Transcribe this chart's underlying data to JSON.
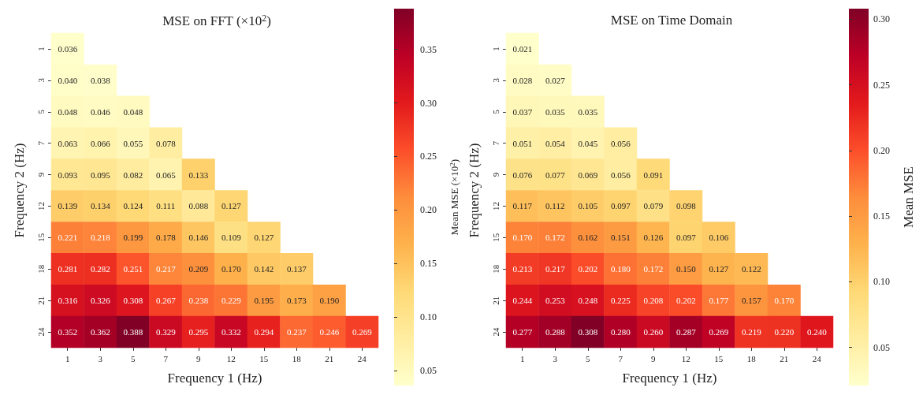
{
  "chart_data": [
    {
      "type": "heatmap",
      "title": "MSE on FFT (×10$^{2}$)",
      "xlabel": "Frequency 1 (Hz)",
      "ylabel": "Frequency 2 (Hz)",
      "clabel": "Mean MSE (×10$^{2}$)",
      "categories": [
        "1",
        "3",
        "5",
        "7",
        "9",
        "12",
        "15",
        "18",
        "21",
        "24"
      ],
      "y_categories": [
        "1",
        "3",
        "5",
        "7",
        "9",
        "12",
        "15",
        "18",
        "21",
        "24"
      ],
      "cells": [
        [
          0.036,
          null,
          null,
          null,
          null,
          null,
          null,
          null,
          null,
          null
        ],
        [
          0.04,
          0.038,
          null,
          null,
          null,
          null,
          null,
          null,
          null,
          null
        ],
        [
          0.048,
          0.046,
          0.048,
          null,
          null,
          null,
          null,
          null,
          null,
          null
        ],
        [
          0.063,
          0.066,
          0.055,
          0.078,
          null,
          null,
          null,
          null,
          null,
          null
        ],
        [
          0.093,
          0.095,
          0.082,
          0.065,
          0.133,
          null,
          null,
          null,
          null,
          null
        ],
        [
          0.139,
          0.134,
          0.124,
          0.111,
          0.088,
          0.127,
          null,
          null,
          null,
          null
        ],
        [
          0.221,
          0.218,
          0.199,
          0.178,
          0.146,
          0.109,
          0.127,
          null,
          null,
          null
        ],
        [
          0.281,
          0.282,
          0.251,
          0.217,
          0.209,
          0.17,
          0.142,
          0.137,
          null,
          null
        ],
        [
          0.316,
          0.326,
          0.308,
          0.267,
          0.238,
          0.229,
          0.195,
          0.173,
          0.19,
          null
        ],
        [
          0.352,
          0.362,
          0.388,
          0.329,
          0.295,
          0.332,
          0.294,
          0.237,
          0.246,
          0.269
        ]
      ],
      "cell_labels": [
        [
          "0.036",
          null,
          null,
          null,
          null,
          null,
          null,
          null,
          null,
          null
        ],
        [
          "0.040",
          "0.038",
          null,
          null,
          null,
          null,
          null,
          null,
          null,
          null
        ],
        [
          "0.048",
          "0.046",
          "0.048",
          null,
          null,
          null,
          null,
          null,
          null,
          null
        ],
        [
          "0.063",
          "0.066",
          "0.055",
          "0.078",
          null,
          null,
          null,
          null,
          null,
          null
        ],
        [
          "0.093",
          "0.095",
          "0.082",
          "0.065",
          "0.133",
          null,
          null,
          null,
          null,
          null
        ],
        [
          "0.139",
          "0.134",
          "0.124",
          "0.111",
          "0.088",
          "0.127",
          null,
          null,
          null,
          null
        ],
        [
          "0.221",
          "0.218",
          "0.199",
          "0.178",
          "0.146",
          "0.109",
          "0.127",
          null,
          null,
          null
        ],
        [
          "0.281",
          "0.282",
          "0.251",
          "0.217",
          "0.209",
          "0.170",
          "0.142",
          "0.137",
          null,
          null
        ],
        [
          "0.316",
          "0.326",
          "0.308",
          "0.267",
          "0.238",
          "0.229",
          "0.195",
          "0.173",
          "0.190",
          null
        ],
        [
          "0.352",
          "0.362",
          "0.388",
          "0.329",
          "0.295",
          "0.332",
          "0.294",
          "0.237",
          "0.246",
          "0.269"
        ]
      ],
      "clim": [
        0.036,
        0.388
      ],
      "cticks": [
        0.05,
        {
          "value": 0.1,
          "label": "0.10"
        },
        0.15,
        {
          "value": 0.2,
          "label": "0.20"
        },
        0.25,
        {
          "value": 0.3,
          "label": "0.30"
        },
        0.35
      ],
      "data_labels": true
    },
    {
      "type": "heatmap",
      "title": "MSE on Time Domain",
      "xlabel": "Frequency 1 (Hz)",
      "ylabel": "Frequency 2 (Hz)",
      "clabel": "Mean MSE",
      "categories": [
        "1",
        "3",
        "5",
        "7",
        "9",
        "12",
        "15",
        "18",
        "21",
        "24"
      ],
      "y_categories": [
        "1",
        "3",
        "5",
        "7",
        "9",
        "12",
        "15",
        "18",
        "21",
        "24"
      ],
      "cells": [
        [
          0.021,
          null,
          null,
          null,
          null,
          null,
          null,
          null,
          null,
          null
        ],
        [
          0.028,
          0.027,
          null,
          null,
          null,
          null,
          null,
          null,
          null,
          null
        ],
        [
          0.037,
          0.035,
          0.035,
          null,
          null,
          null,
          null,
          null,
          null,
          null
        ],
        [
          0.051,
          0.054,
          0.045,
          0.056,
          null,
          null,
          null,
          null,
          null,
          null
        ],
        [
          0.076,
          0.077,
          0.069,
          0.056,
          0.091,
          null,
          null,
          null,
          null,
          null
        ],
        [
          0.117,
          0.112,
          0.105,
          0.097,
          0.079,
          0.098,
          null,
          null,
          null,
          null
        ],
        [
          0.17,
          0.172,
          0.162,
          0.151,
          0.126,
          0.097,
          0.106,
          null,
          null,
          null
        ],
        [
          0.213,
          0.217,
          0.202,
          0.18,
          0.172,
          0.15,
          0.127,
          0.122,
          null,
          null
        ],
        [
          0.244,
          0.253,
          0.248,
          0.225,
          0.208,
          0.202,
          0.177,
          0.157,
          0.17,
          null
        ],
        [
          0.277,
          0.288,
          0.308,
          0.28,
          0.26,
          0.287,
          0.269,
          0.219,
          0.22,
          0.24
        ]
      ],
      "cell_labels": [
        [
          "0.021",
          null,
          null,
          null,
          null,
          null,
          null,
          null,
          null,
          null
        ],
        [
          "0.028",
          "0.027",
          null,
          null,
          null,
          null,
          null,
          null,
          null,
          null
        ],
        [
          "0.037",
          "0.035",
          "0.035",
          null,
          null,
          null,
          null,
          null,
          null,
          null
        ],
        [
          "0.051",
          "0.054",
          "0.045",
          "0.056",
          null,
          null,
          null,
          null,
          null,
          null
        ],
        [
          "0.076",
          "0.077",
          "0.069",
          "0.056",
          "0.091",
          null,
          null,
          null,
          null,
          null
        ],
        [
          "0.117",
          "0.112",
          "0.105",
          "0.097",
          "0.079",
          "0.098",
          null,
          null,
          null,
          null
        ],
        [
          "0.170",
          "0.172",
          "0.162",
          "0.151",
          "0.126",
          "0.097",
          "0.106",
          null,
          null,
          null
        ],
        [
          "0.213",
          "0.217",
          "0.202",
          "0.180",
          "0.172",
          "0.150",
          "0.127",
          "0.122",
          null,
          null
        ],
        [
          "0.244",
          "0.253",
          "0.248",
          "0.225",
          "0.208",
          "0.202",
          "0.177",
          "0.157",
          "0.170",
          null
        ],
        [
          "0.277",
          "0.288",
          "0.308",
          "0.280",
          "0.260",
          "0.287",
          "0.269",
          "0.219",
          "0.220",
          "0.240"
        ]
      ],
      "clim": [
        0.021,
        0.308
      ],
      "cticks": [
        0.05,
        {
          "value": 0.1,
          "label": "0.10"
        },
        0.15,
        {
          "value": 0.2,
          "label": "0.20"
        },
        0.25,
        {
          "value": 0.3,
          "label": "0.30"
        }
      ],
      "data_labels": true
    }
  ]
}
